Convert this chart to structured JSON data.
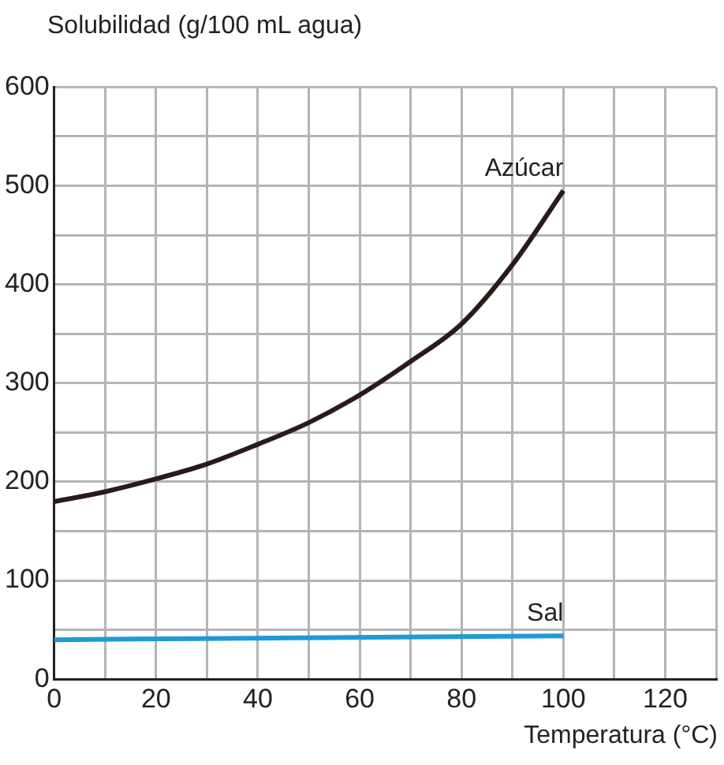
{
  "chart_data": {
    "type": "line",
    "ylabel": "Solubilidad (g/100 mL agua)",
    "xlabel": "Temperatura (°C)",
    "xlim": [
      0,
      130
    ],
    "ylim": [
      0,
      600
    ],
    "xticks": [
      0,
      {
        "value": 10,
        "label": null
      },
      20,
      {
        "value": 30,
        "label": null
      },
      40,
      {
        "value": 50,
        "label": null
      },
      60,
      {
        "value": 70,
        "label": null
      },
      80,
      {
        "value": 90,
        "label": null
      },
      100,
      {
        "value": 110,
        "label": null
      },
      120,
      {
        "value": 130,
        "label": null
      }
    ],
    "yticks": [
      0,
      {
        "value": 50,
        "label": null
      },
      100,
      {
        "value": 150,
        "label": null
      },
      200,
      {
        "value": 250,
        "label": null
      },
      300,
      {
        "value": 350,
        "label": null
      },
      400,
      {
        "value": 450,
        "label": null
      },
      500,
      {
        "value": 550,
        "label": null
      },
      600
    ],
    "grid": true,
    "legend": false,
    "marker": "none",
    "line_style": "solid",
    "series": [
      {
        "name": "Azúcar",
        "color": "#2a1a1a",
        "x": [
          0,
          10,
          20,
          30,
          40,
          50,
          60,
          70,
          80,
          90,
          100
        ],
        "values": [
          180,
          190,
          203,
          218,
          238,
          260,
          288,
          322,
          360,
          420,
          495
        ]
      },
      {
        "name": "Sal",
        "color": "#1f9ad6",
        "x": [
          0,
          100
        ],
        "values": [
          40,
          44
        ]
      }
    ]
  }
}
